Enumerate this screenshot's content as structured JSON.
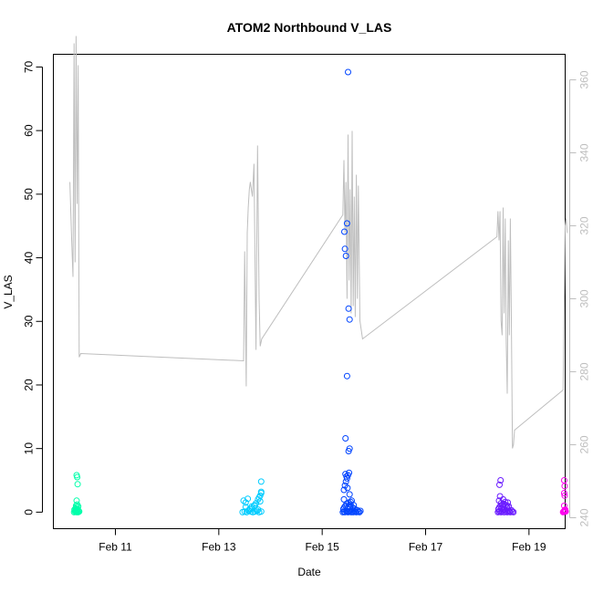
{
  "chart_data": {
    "type": "scatter",
    "title": "ATOM2 Northbound V_LAS",
    "xlabel": "Date",
    "ylabel": "V_LAS",
    "xlim": [
      9.8,
      19.7
    ],
    "ylim": [
      -2.6,
      72
    ],
    "x_ticks": [
      {
        "value": 11,
        "label": "Feb 11"
      },
      {
        "value": 13,
        "label": "Feb 13"
      },
      {
        "value": 15,
        "label": "Feb 15"
      },
      {
        "value": 17,
        "label": "Feb 17"
      },
      {
        "value": 19,
        "label": "Feb 19"
      }
    ],
    "y_ticks": [
      0,
      10,
      20,
      30,
      40,
      50,
      60,
      70
    ],
    "right_axis": {
      "ylim": [
        237,
        367
      ],
      "ticks": [
        240,
        260,
        280,
        300,
        320,
        340,
        360
      ],
      "color": "#bebebe"
    },
    "grid": false,
    "series": [
      {
        "color": "#00ffaa",
        "x": [
          10.2,
          10.22,
          10.24,
          10.25,
          10.26,
          10.27,
          10.28,
          10.29,
          10.3,
          10.21,
          10.23,
          10.25,
          10.27,
          10.24,
          10.26,
          10.28,
          10.25,
          10.23,
          10.27,
          10.26,
          10.25,
          10.24
        ],
        "y": [
          0.0,
          0.1,
          0.2,
          0.0,
          0.3,
          0.1,
          0.0,
          0.2,
          0.1,
          0.4,
          0.6,
          0.8,
          0.5,
          1.0,
          1.2,
          0.9,
          1.8,
          0.3,
          4.4,
          5.5,
          5.8,
          0.1
        ]
      },
      {
        "color": "#00ccff",
        "x": [
          13.46,
          13.5,
          13.54,
          13.58,
          13.62,
          13.66,
          13.7,
          13.74,
          13.78,
          13.82,
          13.48,
          13.52,
          13.56,
          13.6,
          13.64,
          13.68,
          13.72,
          13.76,
          13.8,
          13.52,
          13.58,
          13.64,
          13.7,
          13.76,
          13.82,
          13.78,
          13.82,
          13.8,
          13.82
        ],
        "y": [
          0.0,
          0.1,
          0.0,
          0.2,
          0.1,
          0.0,
          0.1,
          0.2,
          0.0,
          0.1,
          1.8,
          1.5,
          2.1,
          0.5,
          0.9,
          1.0,
          1.4,
          2.0,
          2.6,
          0.8,
          0.3,
          0.6,
          1.1,
          0.4,
          3.0,
          2.3,
          3.2,
          1.7,
          4.8
        ]
      },
      {
        "color": "#0044ff",
        "x": [
          15.4,
          15.42,
          15.44,
          15.46,
          15.48,
          15.5,
          15.52,
          15.54,
          15.56,
          15.58,
          15.6,
          15.62,
          15.64,
          15.66,
          15.68,
          15.7,
          15.72,
          15.74,
          15.41,
          15.43,
          15.45,
          15.47,
          15.49,
          15.51,
          15.53,
          15.55,
          15.57,
          15.59,
          15.61,
          15.63,
          15.42,
          15.44,
          15.46,
          15.48,
          15.5,
          15.52,
          15.45,
          15.47,
          15.49,
          15.51,
          15.53,
          15.45,
          15.48,
          15.51,
          15.53,
          15.46,
          15.43,
          15.44,
          15.48,
          15.5,
          15.42,
          15.53,
          15.55
        ],
        "y": [
          0.0,
          0.1,
          0.0,
          0.2,
          0.1,
          0.0,
          0.1,
          0.2,
          0.0,
          0.1,
          0.0,
          0.2,
          0.1,
          0.0,
          0.3,
          0.1,
          0.0,
          0.2,
          0.5,
          0.8,
          1.0,
          1.3,
          0.6,
          1.5,
          0.9,
          1.2,
          1.8,
          0.7,
          1.1,
          0.5,
          3.5,
          4.2,
          4.8,
          5.3,
          5.8,
          6.2,
          6.0,
          5.6,
          3.8,
          9.6,
          10.0,
          11.6,
          21.4,
          32.0,
          30.3,
          40.3,
          44.1,
          41.4,
          45.4,
          69.2,
          2.0,
          2.8,
          1.6
        ]
      },
      {
        "color": "#6a1bff",
        "x": [
          18.4,
          18.42,
          18.44,
          18.46,
          18.48,
          18.5,
          18.52,
          18.54,
          18.56,
          18.58,
          18.6,
          18.62,
          18.64,
          18.66,
          18.68,
          18.7,
          18.41,
          18.43,
          18.45,
          18.47,
          18.49,
          18.51,
          18.53,
          18.55,
          18.57,
          18.59,
          18.61,
          18.42,
          18.46,
          18.5,
          18.54,
          18.58,
          18.44,
          18.52,
          18.43,
          18.45
        ],
        "y": [
          0.0,
          0.1,
          0.2,
          0.0,
          0.1,
          0.3,
          0.0,
          0.2,
          0.1,
          0.0,
          0.2,
          0.1,
          0.0,
          0.3,
          0.1,
          0.0,
          0.5,
          0.8,
          1.0,
          0.6,
          1.2,
          0.9,
          0.4,
          1.1,
          0.7,
          1.5,
          0.9,
          1.8,
          1.4,
          2.0,
          1.6,
          1.0,
          2.5,
          1.3,
          4.3,
          5.0
        ]
      },
      {
        "color": "#ff00ee",
        "x": [
          19.66,
          19.67,
          19.68,
          19.69,
          19.7,
          19.71,
          19.68,
          19.69,
          19.68,
          19.69,
          19.68,
          19.7
        ],
        "y": [
          0.0,
          0.1,
          0.2,
          0.3,
          0.4,
          0.1,
          1.0,
          2.6,
          3.0,
          4.1,
          5.0,
          0.2
        ]
      },
      {
        "color": "#bebebe",
        "type": "line",
        "axis": "right",
        "x": [
          10.12,
          10.15,
          10.18,
          10.2,
          10.22,
          10.24,
          10.26,
          10.28,
          10.3,
          10.33,
          13.48,
          13.5,
          13.53,
          13.55,
          13.57,
          13.59,
          13.61,
          13.63,
          13.65,
          13.68,
          13.72,
          13.75,
          13.78,
          13.8,
          13.83,
          15.4,
          15.42,
          15.44,
          15.46,
          15.48,
          15.5,
          15.52,
          15.54,
          15.56,
          15.58,
          15.6,
          15.62,
          15.64,
          15.66,
          15.68,
          15.7,
          15.73,
          15.78,
          18.38,
          18.4,
          18.42,
          18.44,
          18.46,
          18.48,
          18.5,
          18.52,
          18.54,
          18.56,
          18.58,
          18.6,
          18.62,
          18.64,
          18.66,
          18.68,
          18.7,
          18.72,
          19.66,
          19.7,
          19.72,
          19.74
        ],
        "y": [
          332,
          318,
          306,
          370,
          310,
          372,
          326,
          364,
          284,
          285,
          283,
          313,
          276,
          318,
          325,
          330,
          332,
          330,
          328,
          337,
          286,
          342,
          300,
          287,
          289,
          323,
          338,
          318,
          332,
          300,
          345,
          305,
          330,
          296,
          346,
          298,
          328,
          295,
          334,
          300,
          331,
          294,
          289,
          317,
          324,
          316,
          324,
          294,
          290,
          325,
          296,
          322,
          288,
          274,
          316,
          290,
          322,
          292,
          259,
          260,
          264,
          275,
          320,
          322,
          318
        ]
      }
    ]
  }
}
